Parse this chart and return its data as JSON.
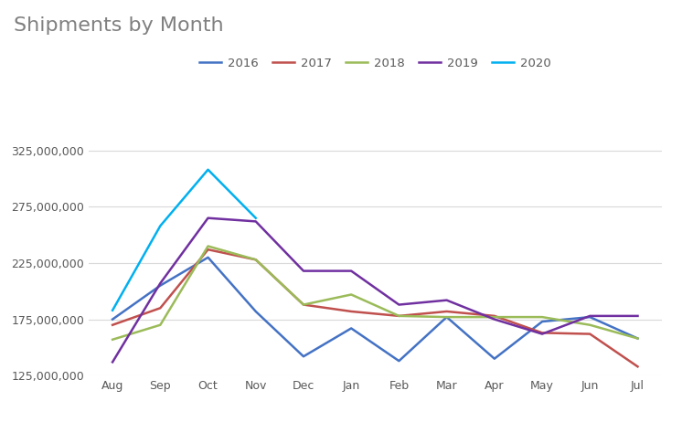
{
  "title": "Shipments by Month",
  "months": [
    "Aug",
    "Sep",
    "Oct",
    "Nov",
    "Dec",
    "Jan",
    "Feb",
    "Mar",
    "Apr",
    "May",
    "Jun",
    "Jul"
  ],
  "series": {
    "2016": {
      "color": "#4472c4",
      "values": [
        175000000,
        205000000,
        230000000,
        182000000,
        142000000,
        167000000,
        138000000,
        177000000,
        140000000,
        173000000,
        177000000,
        158000000
      ]
    },
    "2017": {
      "color": "#c0504d",
      "values": [
        170000000,
        185000000,
        237000000,
        228000000,
        188000000,
        182000000,
        178000000,
        182000000,
        178000000,
        163000000,
        162000000,
        133000000
      ]
    },
    "2018": {
      "color": "#9bbb59",
      "values": [
        157000000,
        170000000,
        240000000,
        228000000,
        188000000,
        197000000,
        178000000,
        177000000,
        177000000,
        177000000,
        170000000,
        158000000
      ]
    },
    "2019": {
      "color": "#7030a0",
      "values": [
        137000000,
        207000000,
        265000000,
        262000000,
        218000000,
        218000000,
        188000000,
        192000000,
        175000000,
        162000000,
        178000000,
        178000000
      ]
    },
    "2020": {
      "color": "#00b0f0",
      "values": [
        183000000,
        258000000,
        308000000,
        265000000,
        null,
        null,
        null,
        null,
        null,
        null,
        null,
        null
      ]
    }
  },
  "ylim": [
    125000000,
    350000000
  ],
  "yticks": [
    125000000,
    175000000,
    225000000,
    275000000,
    325000000
  ],
  "title_fontsize": 16,
  "title_color": "#808080",
  "legend_fontsize": 9.5,
  "tick_fontsize": 9,
  "background_color": "#ffffff",
  "grid_color": "#d9d9d9",
  "line_width": 1.8
}
